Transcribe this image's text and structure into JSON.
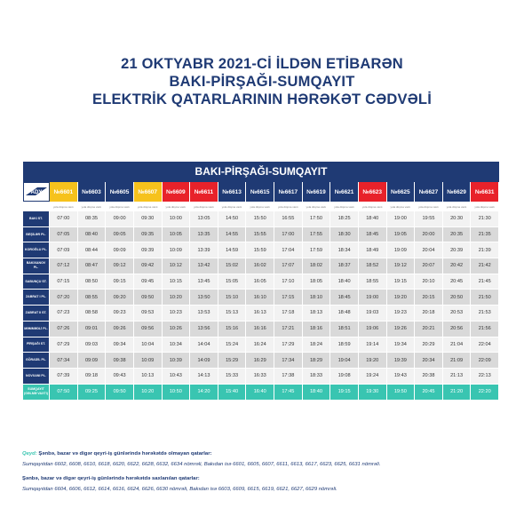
{
  "title_lines": [
    "21 OKTYABR 2021-Cİ İLDƏN ETİBARƏN",
    "BAKI-PİRŞAĞI-SUMQAYIT",
    "ELEKTRİK QATARLARININ HƏRƏKƏT CƏDVƏLİ"
  ],
  "banner": "BAKI-PİRŞAĞI-SUMQAYIT",
  "logo_text": "ADY",
  "colors": {
    "navy": "#1f3a74",
    "yellow": "#f6c21c",
    "red": "#e8222a",
    "teal": "#39c5b1"
  },
  "trains": [
    {
      "no": "№6601",
      "color": "yellow"
    },
    {
      "no": "№6603",
      "color": "navy"
    },
    {
      "no": "№6605",
      "color": "navy"
    },
    {
      "no": "№6607",
      "color": "yellow"
    },
    {
      "no": "№6609",
      "color": "red"
    },
    {
      "no": "№6611",
      "color": "red"
    },
    {
      "no": "№6613",
      "color": "navy"
    },
    {
      "no": "№6615",
      "color": "navy"
    },
    {
      "no": "№6617",
      "color": "navy"
    },
    {
      "no": "№6619",
      "color": "navy"
    },
    {
      "no": "№6621",
      "color": "navy"
    },
    {
      "no": "№6623",
      "color": "red"
    },
    {
      "no": "№6625",
      "color": "navy"
    },
    {
      "no": "№6627",
      "color": "navy"
    },
    {
      "no": "№6629",
      "color": "navy"
    },
    {
      "no": "№6631",
      "color": "red"
    }
  ],
  "subheader": "yola düşmə vaxtı",
  "stations": [
    {
      "name": "BAKI ST.",
      "times": [
        "07:00",
        "08:35",
        "09:00",
        "09:30",
        "10:00",
        "13:05",
        "14:50",
        "15:50",
        "16:55",
        "17:50",
        "18:25",
        "18:40",
        "19:00",
        "19:55",
        "20:30",
        "21:30"
      ]
    },
    {
      "name": "BEŞİLƏR PL.",
      "times": [
        "07:05",
        "08:40",
        "09:05",
        "09:35",
        "10:05",
        "13:35",
        "14:55",
        "15:55",
        "17:00",
        "17:55",
        "18:30",
        "18:45",
        "19:05",
        "20:00",
        "20:35",
        "21:35"
      ]
    },
    {
      "name": "KOROĞLU PL.",
      "times": [
        "07:09",
        "08:44",
        "09:09",
        "09:39",
        "10:09",
        "13:39",
        "14:59",
        "15:59",
        "17:04",
        "17:59",
        "18:34",
        "18:49",
        "19:09",
        "20:04",
        "20:39",
        "21:39"
      ]
    },
    {
      "name": "BAKIXANOV PL.",
      "times": [
        "07:12",
        "08:47",
        "09:12",
        "09:42",
        "10:12",
        "13:42",
        "15:02",
        "16:02",
        "17:07",
        "18:02",
        "18:37",
        "18:52",
        "19:12",
        "20:07",
        "20:42",
        "21:42"
      ]
    },
    {
      "name": "SABUNÇU ST.",
      "times": [
        "07:15",
        "08:50",
        "09:15",
        "09:45",
        "10:15",
        "13:45",
        "15:05",
        "16:05",
        "17:10",
        "18:05",
        "18:40",
        "18:55",
        "19:15",
        "20:10",
        "20:45",
        "21:45"
      ]
    },
    {
      "name": "ZABRAT I PL.",
      "times": [
        "07:20",
        "08:55",
        "09:20",
        "09:50",
        "10:20",
        "13:50",
        "15:10",
        "16:10",
        "17:15",
        "18:10",
        "18:45",
        "19:00",
        "19:20",
        "20:15",
        "20:50",
        "21:50"
      ]
    },
    {
      "name": "ZABRAT II ST.",
      "times": [
        "07:23",
        "08:58",
        "09:23",
        "09:53",
        "10:23",
        "13:53",
        "15:13",
        "16:13",
        "17:18",
        "18:13",
        "18:48",
        "19:03",
        "19:23",
        "20:18",
        "20:53",
        "21:53"
      ]
    },
    {
      "name": "MƏMMƏDLİ PL.",
      "times": [
        "07:26",
        "09:01",
        "09:26",
        "09:56",
        "10:26",
        "13:56",
        "15:16",
        "16:16",
        "17:21",
        "18:16",
        "18:51",
        "19:06",
        "19:26",
        "20:21",
        "20:56",
        "21:56"
      ]
    },
    {
      "name": "PİRŞAĞI ST.",
      "times": [
        "07:29",
        "09:03",
        "09:34",
        "10:04",
        "10:34",
        "14:04",
        "15:24",
        "16:24",
        "17:29",
        "18:24",
        "18:59",
        "19:14",
        "19:34",
        "20:29",
        "21:04",
        "22:04"
      ]
    },
    {
      "name": "GÖRADİL PL.",
      "times": [
        "07:34",
        "09:09",
        "09:38",
        "10:09",
        "10:39",
        "14:09",
        "15:29",
        "16:29",
        "17:34",
        "18:29",
        "19:04",
        "19:20",
        "19:39",
        "20:34",
        "21:09",
        "22:09"
      ]
    },
    {
      "name": "NOVXANI PL.",
      "times": [
        "07:39",
        "09:18",
        "09:43",
        "10:13",
        "10:43",
        "14:13",
        "15:33",
        "16:33",
        "17:38",
        "18:33",
        "19:08",
        "19:24",
        "19:43",
        "20:38",
        "21:13",
        "22:13"
      ]
    },
    {
      "name": "SUMQAYIT (GƏLMƏ VAXTI)",
      "times": [
        "07:50",
        "09:25",
        "09:50",
        "10:20",
        "10:50",
        "14:20",
        "15:40",
        "16:40",
        "17:45",
        "18:40",
        "19:15",
        "19:30",
        "19:50",
        "20:45",
        "21:20",
        "22:20"
      ]
    }
  ],
  "notes": {
    "qeyd_label": "Qeyd:",
    "line1": "Şənbə, bazar və digər qeyri-iş günlərində hərəkətdə olmayan qatarlar:",
    "line2": "Sumqayıtdan 6602, 6608, 6610, 6618, 6620, 6622, 6628, 6632, 6634 nömrəli, Bakıdan isə  6601, 6605, 6607, 6611, 6613, 6617, 6623, 6625, 6631 nömrəli.",
    "line3": "Şənbə, bazar və digər qeyri-iş günlərində hərəkətdə saxlanılan qatarlar:",
    "line4": "Sumqayıtdan 6604, 6606, 6612, 6614, 6616, 6624, 6626, 6630 nömrəli, Bakıdan isə 6603, 6609, 6615, 6619, 6621, 6627, 6629 nömrəli."
  }
}
